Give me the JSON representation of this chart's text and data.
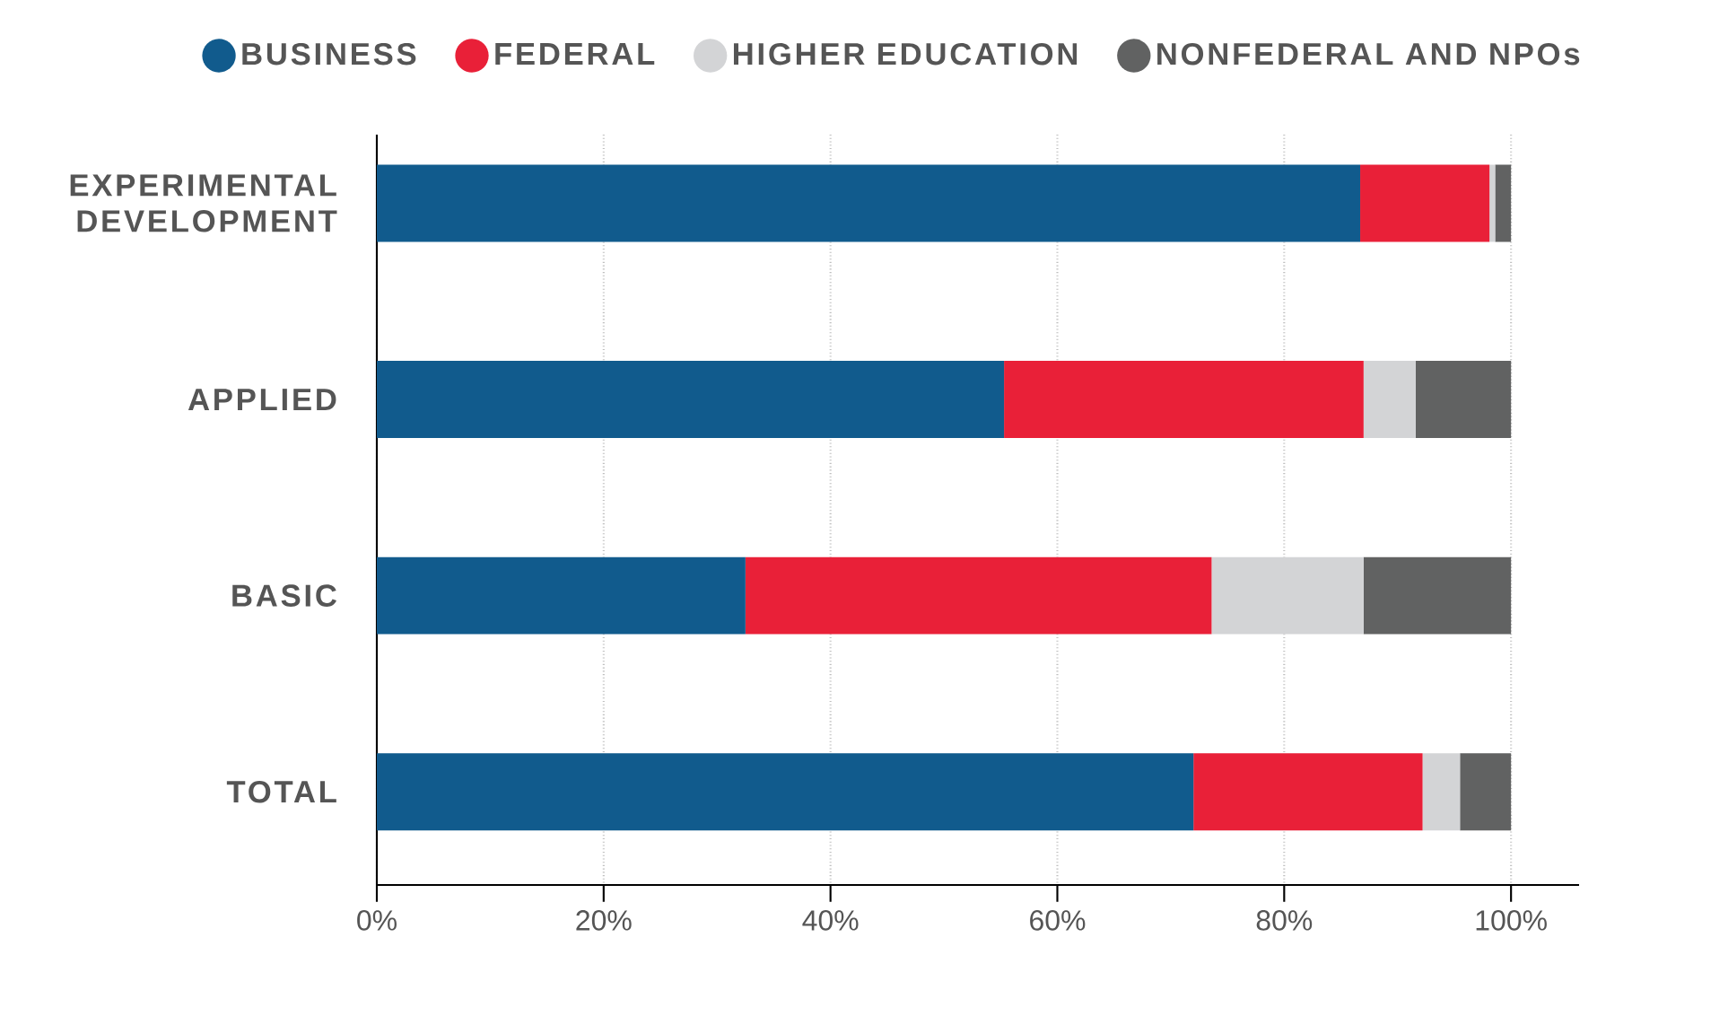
{
  "chart_data": {
    "type": "bar",
    "orientation": "horizontal",
    "stacked": true,
    "categories": [
      "EXPERIMENTAL DEVELOPMENT",
      "APPLIED",
      "BASIC",
      "TOTAL"
    ],
    "series": [
      {
        "name": "BUSINESS",
        "color": "#115b8d",
        "values": [
          86.7,
          55.3,
          32.5,
          72.0
        ]
      },
      {
        "name": "FEDERAL",
        "color": "#e92038",
        "values": [
          11.4,
          31.7,
          41.1,
          20.2
        ]
      },
      {
        "name": "HIGHER EDUCATION",
        "color": "#d3d4d6",
        "values": [
          0.5,
          4.6,
          13.4,
          3.3
        ]
      },
      {
        "name": "NONFEDERAL AND NPOs",
        "color": "#616262",
        "values": [
          1.4,
          8.4,
          13.0,
          4.5
        ]
      }
    ],
    "xlim": [
      0,
      106
    ],
    "xticks": [
      {
        "value": 0,
        "label": "0%"
      },
      {
        "value": 20,
        "label": "20%"
      },
      {
        "value": 40,
        "label": "40%"
      },
      {
        "value": 60,
        "label": "60%"
      },
      {
        "value": 80,
        "label": "80%"
      },
      {
        "value": 100,
        "label": "100%"
      }
    ],
    "grid": "x",
    "legend": "top"
  }
}
